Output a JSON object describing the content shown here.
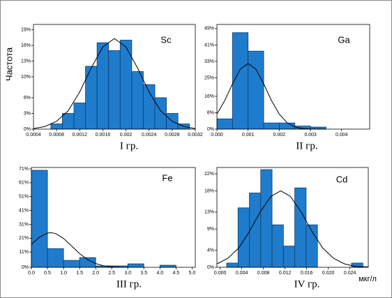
{
  "chart_data": [
    {
      "type": "histogram",
      "title": "Sc",
      "xlabel": "I гр.",
      "y_label": "Частота",
      "color": "#1f7ccc",
      "bins": [
        0.0007,
        0.0009,
        0.0011,
        0.0013,
        0.0015,
        0.0017,
        0.0019,
        0.0021,
        0.0023,
        0.0025,
        0.0027,
        0.0029,
        0.0031
      ],
      "values": [
        1,
        3,
        5,
        12,
        16.5,
        15,
        17,
        11,
        8.5,
        6,
        3,
        1
      ],
      "curve": {
        "x": [
          0.0004,
          0.0006,
          0.0008,
          0.001,
          0.0012,
          0.0014,
          0.0016,
          0.0018,
          0.002,
          0.0022,
          0.0024,
          0.0026,
          0.0028,
          0.003,
          0.0032
        ],
        "y": [
          0.1,
          0.5,
          1.5,
          3.5,
          7.1,
          11.7,
          15.7,
          17.3,
          15.7,
          11.7,
          7.1,
          3.5,
          1.5,
          0.5,
          0.1
        ]
      },
      "xlim": [
        0.0004,
        0.0032
      ],
      "xticks": [
        0.0004,
        0.0008,
        0.0012,
        0.0016,
        0.002,
        0.0024,
        0.0028,
        0.0032
      ],
      "ylim": [
        0,
        20
      ],
      "yticks": [
        {
          "value": 0,
          "label": "0%"
        },
        {
          "value": 3,
          "label": "3%"
        },
        {
          "value": 6,
          "label": "6%"
        },
        {
          "value": 10,
          "label": "10%"
        },
        {
          "value": 13,
          "label": "13%"
        },
        {
          "value": 16,
          "label": "16%"
        },
        {
          "value": 19,
          "label": "19%"
        }
      ]
    },
    {
      "type": "histogram",
      "title": "Ga",
      "xlabel": "II гр.",
      "color": "#1f7ccc",
      "bins": [
        0,
        0.0005,
        0.001,
        0.0015,
        0.002,
        0.0025,
        0.003,
        0.0035
      ],
      "values": [
        5,
        47,
        38,
        3,
        3,
        1.5,
        1
      ],
      "curve": {
        "x": [
          0,
          0.00025,
          0.0005,
          0.00075,
          0.001,
          0.00125,
          0.0015,
          0.00175,
          0.002,
          0.00225,
          0.0025,
          0.00275,
          0.003,
          0.0035
        ],
        "y": [
          7.3,
          13.9,
          22.1,
          29.2,
          32,
          29.2,
          22.1,
          13.9,
          7.3,
          3.1,
          1.1,
          0.3,
          0.1,
          0
        ]
      },
      "xlim": [
        0,
        0.0049
      ],
      "xticks": [
        {
          "value": 0,
          "label": "0.000"
        },
        0.001,
        0.002,
        0.003,
        0.004
      ],
      "ylim": [
        0,
        51
      ],
      "yticks": [
        {
          "value": 0,
          "label": "0%"
        },
        {
          "value": 8,
          "label": "8%"
        },
        {
          "value": 16,
          "label": "16%"
        },
        {
          "value": 25,
          "label": "25%"
        },
        {
          "value": 33,
          "label": "33%"
        },
        {
          "value": 41,
          "label": "41%"
        },
        {
          "value": 49,
          "label": "49%"
        }
      ]
    },
    {
      "type": "histogram",
      "title": "Fe",
      "xlabel": "III гр.",
      "color": "#1f7ccc",
      "bins": [
        0,
        0.5,
        1,
        1.5,
        2,
        2.5,
        3,
        3.5,
        4,
        4.5
      ],
      "values": [
        70,
        13.5,
        5,
        7,
        1,
        1,
        2.5,
        0,
        1.5
      ],
      "curve": {
        "x": [
          0,
          0.25,
          0.5,
          0.6,
          0.75,
          1,
          1.25,
          1.5,
          1.75,
          2,
          2.25,
          2.5,
          2.75,
          3
        ],
        "y": [
          16.5,
          21.7,
          24.7,
          25,
          24.4,
          20.8,
          15.4,
          9.9,
          5.5,
          2.7,
          1.1,
          0.4,
          0.1,
          0
        ]
      },
      "xlim": [
        0,
        5.1
      ],
      "xticks": [
        {
          "value": 0,
          "label": "0.0"
        },
        0.5,
        {
          "value": 1,
          "label": "1.0"
        },
        1.5,
        {
          "value": 2,
          "label": "2.0"
        },
        2.5,
        {
          "value": 3,
          "label": "3.0"
        },
        3.5,
        {
          "value": 4,
          "label": "4.0"
        },
        4.5,
        {
          "value": 5,
          "label": "5.0"
        }
      ],
      "ylim": [
        0,
        72
      ],
      "yticks": [
        {
          "value": 0,
          "label": "0%"
        },
        {
          "value": 11,
          "label": "11%"
        },
        {
          "value": 21,
          "label": "21%"
        },
        {
          "value": 31,
          "label": "31%"
        },
        {
          "value": 41,
          "label": "41%"
        },
        {
          "value": 51,
          "label": "51%"
        },
        {
          "value": 61,
          "label": "61%"
        },
        {
          "value": 71,
          "label": "71%"
        }
      ]
    },
    {
      "type": "histogram",
      "title": "Cd",
      "xlabel": "IV гр.",
      "x_unit": "мкг/л",
      "color": "#1f7ccc",
      "bins": [
        0.0012,
        0.0033,
        0.0054,
        0.0075,
        0.0096,
        0.0117,
        0.0138,
        0.0159,
        0.018,
        0.0201,
        0.0222,
        0.0243,
        0.0264
      ],
      "values": [
        1,
        14,
        17.5,
        23,
        10,
        5,
        18.7,
        10,
        0,
        0,
        0,
        1
      ],
      "curve": {
        "x": [
          -0.0006,
          0.0014,
          0.0034,
          0.0054,
          0.0074,
          0.0094,
          0.0112,
          0.013,
          0.015,
          0.017,
          0.019,
          0.021,
          0.023,
          0.025,
          0.0274
        ],
        "y": [
          0.8,
          2.1,
          4.5,
          8.4,
          13,
          16.7,
          18,
          16.7,
          13,
          8.4,
          4.5,
          2.1,
          0.8,
          0.2,
          0.1
        ]
      },
      "xlim": [
        -0.0006,
        0.0274
      ],
      "xticks": [
        {
          "value": 0,
          "label": "0.000"
        },
        0.004,
        0.008,
        0.012,
        0.016,
        {
          "value": 0.02,
          "label": "0.020"
        },
        0.024
      ],
      "ylim": [
        0,
        23.5
      ],
      "yticks": [
        {
          "value": 0,
          "label": "0%"
        },
        {
          "value": 4,
          "label": "4%"
        },
        {
          "value": 9,
          "label": "9%"
        },
        {
          "value": 13,
          "label": "13%"
        },
        {
          "value": 18,
          "label": "18%"
        },
        {
          "value": 22,
          "label": "22%"
        }
      ]
    }
  ]
}
